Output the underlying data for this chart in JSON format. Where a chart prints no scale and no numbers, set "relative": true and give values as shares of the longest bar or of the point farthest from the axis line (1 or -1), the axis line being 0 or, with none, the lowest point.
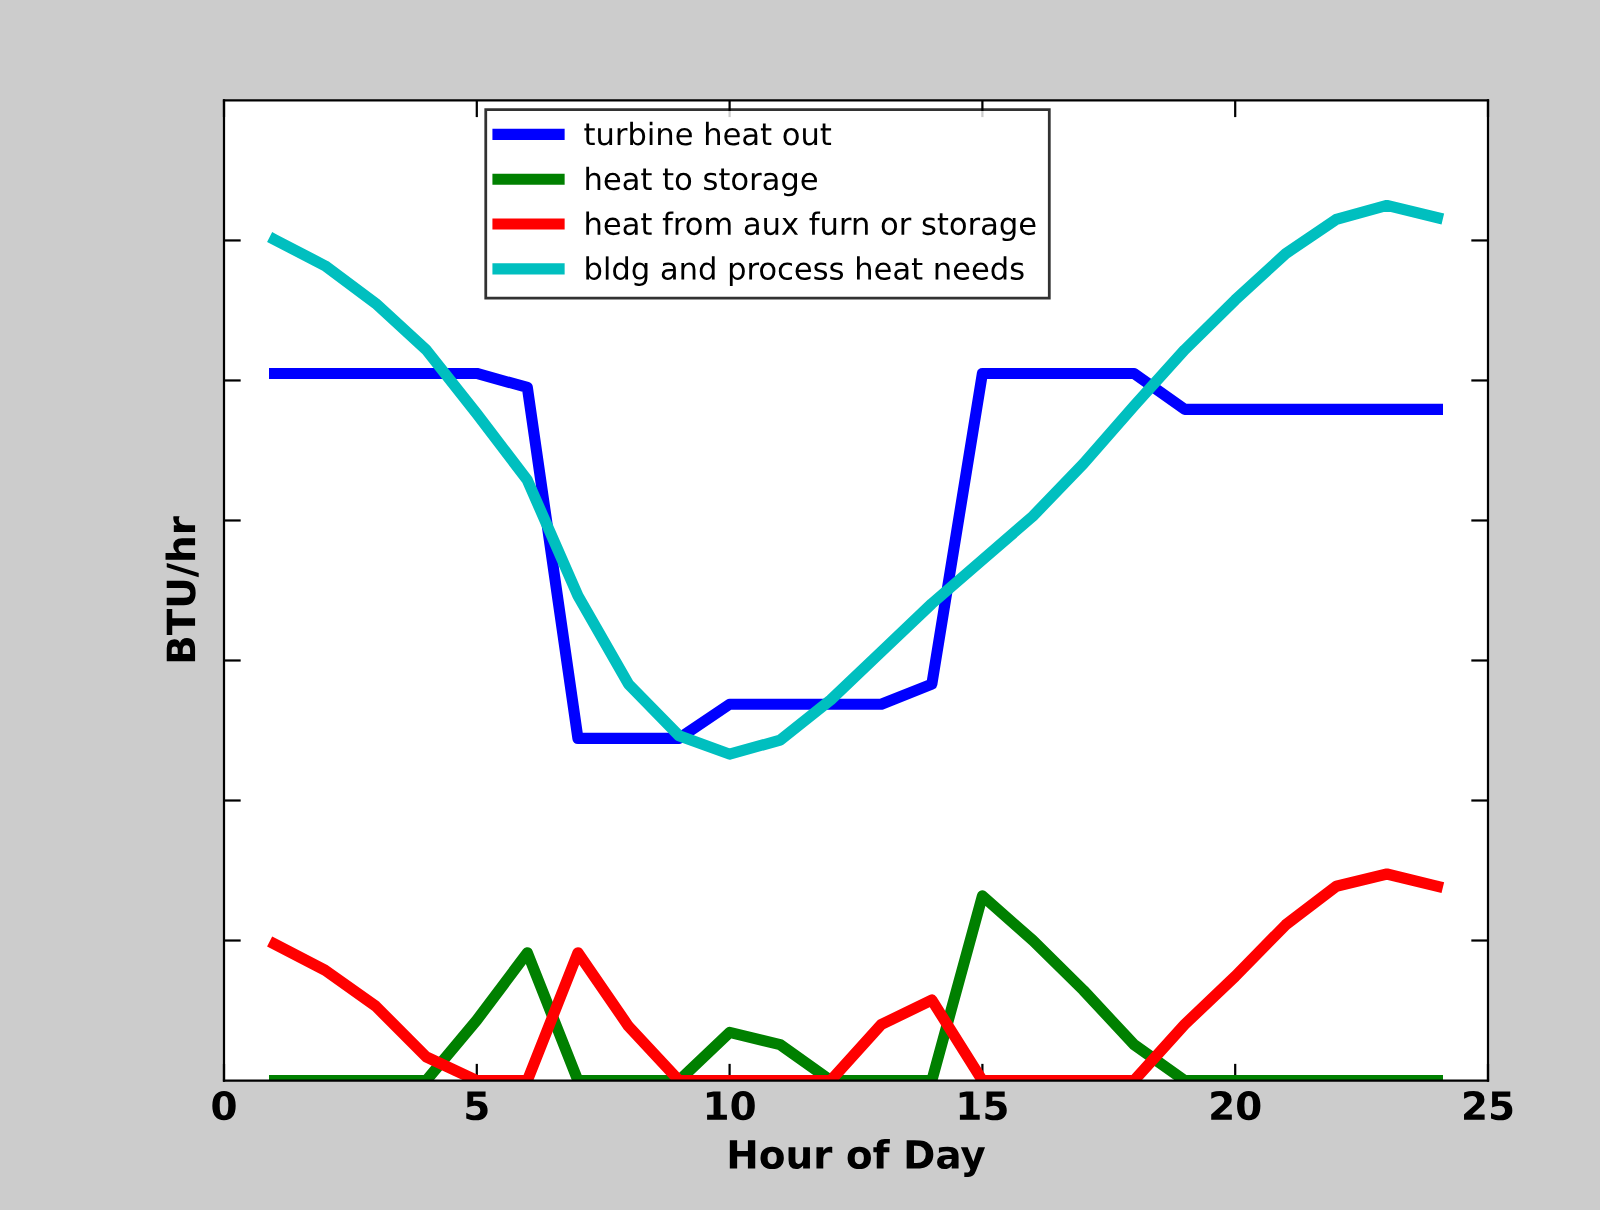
{
  "chart_data": {
    "type": "line",
    "xlabel": "Hour of Day",
    "ylabel": "BTU/hr",
    "relative": true,
    "x": [
      1,
      2,
      3,
      4,
      5,
      6,
      7,
      8,
      9,
      10,
      11,
      12,
      13,
      14,
      15,
      16,
      17,
      18,
      19,
      20,
      21,
      22,
      23,
      24
    ],
    "xlim": [
      0,
      25
    ],
    "xticks": [
      0,
      5,
      10,
      15,
      20,
      25
    ],
    "legend": "top",
    "line_style": "solid",
    "series": [
      {
        "name": "turbine heat out",
        "color": "#0000ff",
        "values": [
          0.808,
          0.808,
          0.808,
          0.808,
          0.808,
          0.792,
          0.391,
          0.391,
          0.391,
          0.43,
          0.43,
          0.43,
          0.43,
          0.453,
          0.808,
          0.808,
          0.808,
          0.808,
          0.767,
          0.767,
          0.767,
          0.767,
          0.767,
          0.767
        ]
      },
      {
        "name": "heat to storage",
        "color": "#008000",
        "values": [
          0,
          0,
          0,
          0,
          0.069,
          0.146,
          0,
          0,
          0,
          0.055,
          0.041,
          0,
          0,
          0,
          0.211,
          0.16,
          0.103,
          0.041,
          0,
          0,
          0,
          0,
          0,
          0
        ]
      },
      {
        "name": "heat from aux furn or storage",
        "color": "#ff0000",
        "values": [
          0.156,
          0.126,
          0.085,
          0.027,
          0,
          0,
          0.146,
          0.062,
          0,
          0,
          0,
          0,
          0.064,
          0.092,
          0,
          0,
          0,
          0,
          0.064,
          0.119,
          0.178,
          0.222,
          0.236,
          0.222
        ]
      },
      {
        "name": "bldg and process heat needs",
        "color": "#00bfbf",
        "values": [
          0.961,
          0.931,
          0.888,
          0.835,
          0.762,
          0.686,
          0.554,
          0.453,
          0.394,
          0.373,
          0.389,
          0.435,
          0.49,
          0.545,
          0.595,
          0.645,
          0.705,
          0.771,
          0.835,
          0.892,
          0.945,
          0.984,
          1.0,
          0.986
        ]
      }
    ]
  }
}
